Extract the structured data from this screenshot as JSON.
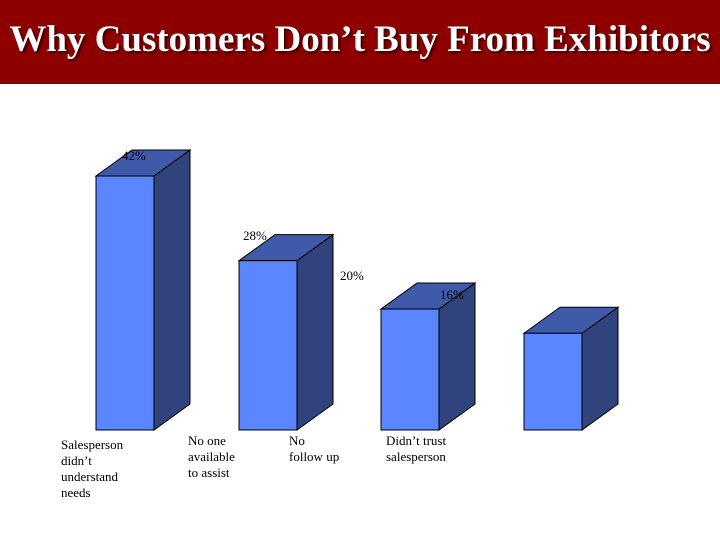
{
  "slide": {
    "title": "Why Customers Don’t Buy From Exhibitors"
  },
  "colors": {
    "title_bg": "#8e0000",
    "bar_front": "#5a86ff",
    "bar_side": "#30437d",
    "bar_top": "#3f5aa8"
  },
  "chart_data": {
    "type": "bar",
    "categories": [
      [
        "Salesperson",
        "didn’t",
        "understand",
        "needs"
      ],
      [
        "No one",
        "available",
        "to assist"
      ],
      [
        "No",
        "follow up"
      ],
      [
        "Didn’t trust",
        "salesperson"
      ]
    ],
    "values": [
      42,
      28,
      20,
      16
    ],
    "value_labels": [
      "42%",
      "28%",
      "20%",
      "16%"
    ],
    "style": "3d-bar",
    "title": "",
    "xlabel": "",
    "ylabel": "",
    "grid": false,
    "legend": "none"
  }
}
